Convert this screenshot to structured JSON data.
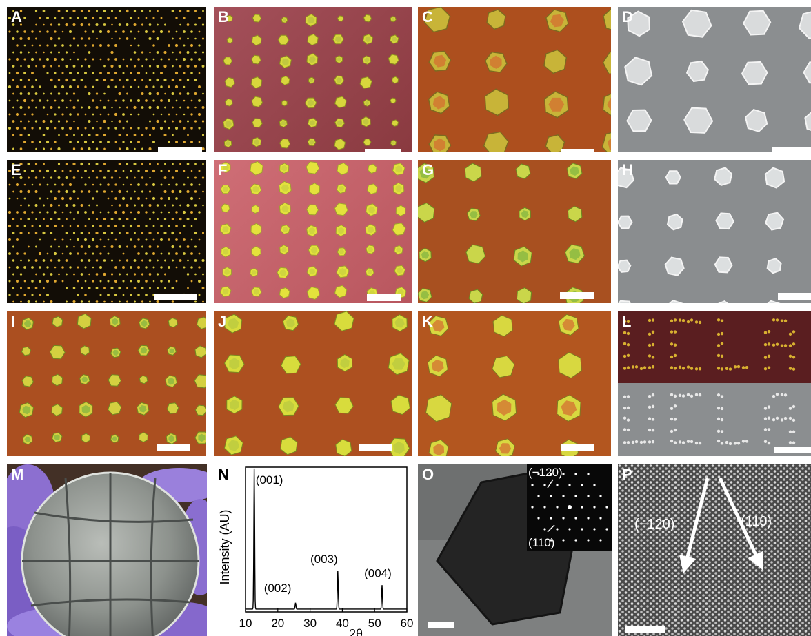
{
  "panels": {
    "A": "A",
    "B": "B",
    "C": "C",
    "D": "D",
    "E": "E",
    "F": "F",
    "G": "G",
    "H": "H",
    "I": "I",
    "J": "J",
    "K": "K",
    "L": "L",
    "M": "M",
    "N": "N",
    "O": "O",
    "P": "P"
  },
  "colors": {
    "substrate_dark": "#151008",
    "substrate_purple": "#a04a4a",
    "substrate_pink": "#c7636a",
    "substrate_orange": "#b5541e",
    "crystal_yellow": "#d8d63c",
    "crystal_green": "#7fb340",
    "sem_gray": "#8a8d8f"
  },
  "chart_data": {
    "type": "line",
    "xlabel": "2θ",
    "ylabel": "Intensity (AU)",
    "xlim": [
      10,
      60
    ],
    "xticks": [
      "10",
      "20",
      "30",
      "40",
      "50",
      "60"
    ],
    "peaks": [
      {
        "label": "(001)",
        "x": 12.7,
        "y": 1.0
      },
      {
        "label": "(002)",
        "x": 25.5,
        "y": 0.045
      },
      {
        "label": "(003)",
        "x": 38.6,
        "y": 0.27
      },
      {
        "label": "(004)",
        "x": 52.3,
        "y": 0.17
      }
    ]
  },
  "O_inset": {
    "label_a": "(−120)",
    "label_b": "(110)"
  },
  "P_labels": {
    "label_a": "(−120)",
    "label_b": "(110)"
  }
}
